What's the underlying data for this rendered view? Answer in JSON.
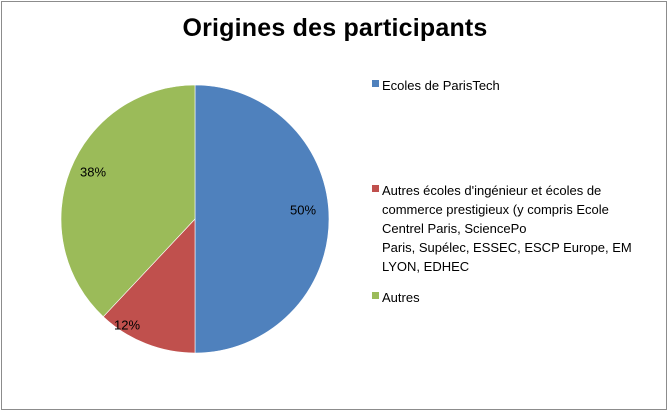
{
  "chart_data": {
    "type": "pie",
    "title": "Origines des participants",
    "slices": [
      {
        "label": "Ecoles de ParisTech",
        "value": 50,
        "data_label": "50%",
        "color": "#4F81BD"
      },
      {
        "label": "Autres écoles d'ingénieur et écoles de commerce prestigieux (y compris Ecole Centrel Paris, SciencePo Paris, Supélec, ESSEC, ESCP Europe, EM LYON, EDHEC",
        "value": 12,
        "data_label": "12%",
        "color": "#C0504D"
      },
      {
        "label": "Autres",
        "value": 38,
        "data_label": "38%",
        "color": "#9BBB59"
      }
    ],
    "legend_position": "right"
  },
  "legend_lines": [
    [
      "Ecoles de ParisTech"
    ],
    [
      "Autres écoles d'ingénieur et écoles de",
      "commerce prestigieux (y compris Ecole",
      "Centrel Paris, SciencePo",
      "Paris, Supélec, ESSEC, ESCP Europe, EM",
      "LYON, EDHEC"
    ],
    [
      "Autres"
    ]
  ]
}
